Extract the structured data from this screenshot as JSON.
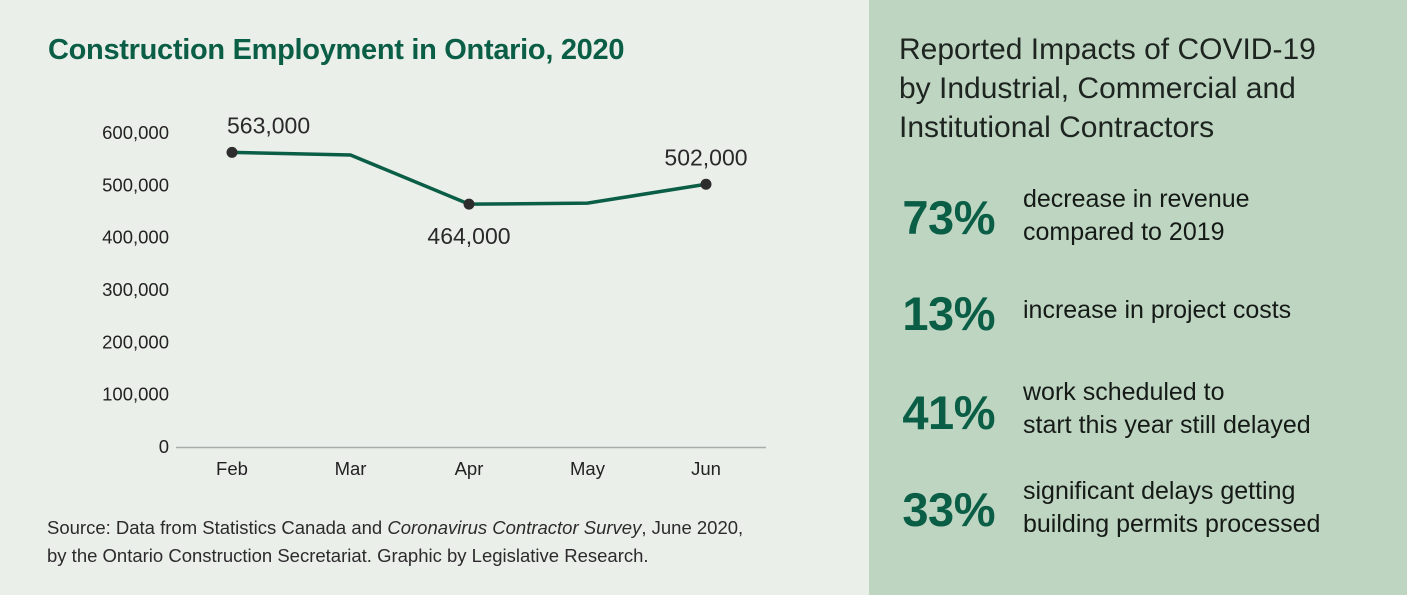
{
  "colors": {
    "left_bg": "#ebefea",
    "right_bg": "#bdd5c1",
    "accent_green": "#0b5e46",
    "marker": "#2d2d2d",
    "axis": "#a9aca8"
  },
  "chart_data": {
    "type": "line",
    "title": "Construction Employment in Ontario, 2020",
    "xlabel": "",
    "ylabel": "",
    "categories": [
      "Feb",
      "Mar",
      "Apr",
      "May",
      "Jun"
    ],
    "series": [
      {
        "name": "Construction employment",
        "values": [
          563000,
          558000,
          464000,
          466000,
          502000
        ]
      }
    ],
    "ylim": [
      0,
      600000
    ],
    "yticks": [
      0,
      100000,
      200000,
      300000,
      400000,
      500000,
      600000
    ],
    "ytick_labels": [
      "0",
      "100,000",
      "200,000",
      "300,000",
      "400,000",
      "500,000",
      "600,000"
    ],
    "grid": false,
    "legend": "none",
    "annotations": [
      {
        "category": "Feb",
        "value": 563000,
        "label": "563,000",
        "position": "above"
      },
      {
        "category": "Apr",
        "value": 464000,
        "label": "464,000",
        "position": "below"
      },
      {
        "category": "Jun",
        "value": 502000,
        "label": "502,000",
        "position": "above"
      }
    ]
  },
  "source": {
    "line1_prefix": "Source: Data from Statistics Canada and ",
    "line1_italic": "Coronavirus Contractor Survey",
    "line1_suffix": ", June 2020,",
    "line2": "by the Ontario Construction Secretariat. Graphic by Legislative Research."
  },
  "panel": {
    "title": "Reported Impacts of COVID-19\nby Industrial, Commercial and\nInstitutional Contractors",
    "stats": [
      {
        "value": "73%",
        "description": "decrease in revenue\ncompared to 2019"
      },
      {
        "value": "13%",
        "description": "increase in project costs"
      },
      {
        "value": "41%",
        "description": "work scheduled to\nstart this year still delayed"
      },
      {
        "value": "33%",
        "description": "significant delays getting\nbuilding permits processed"
      }
    ]
  }
}
